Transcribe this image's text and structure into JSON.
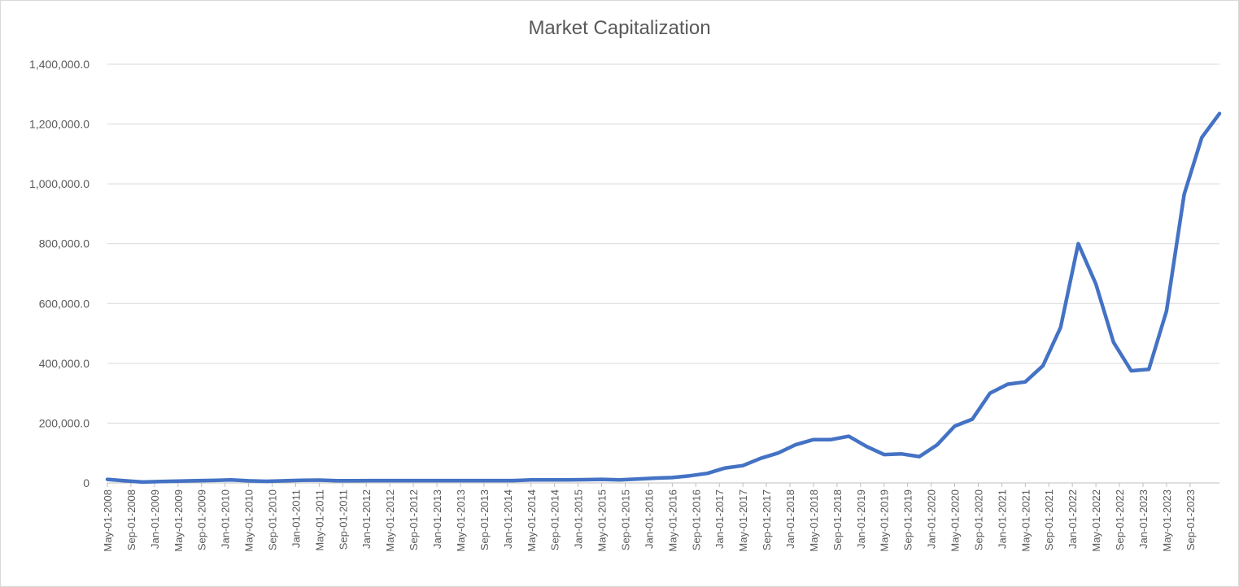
{
  "chart_data": {
    "type": "line",
    "title": "Market Capitalization",
    "xlabel": "",
    "ylabel": "",
    "ylim": [
      0,
      1400000
    ],
    "yticks": [
      "0",
      "200,000.0",
      "400,000.0",
      "600,000.0",
      "800,000.0",
      "1,000,000.0",
      "1,200,000.0",
      "1,400,000.0"
    ],
    "ytick_values": [
      0,
      200000,
      400000,
      600000,
      800000,
      1000000,
      1200000,
      1400000
    ],
    "grid": "horizontal",
    "legend": "none",
    "categories": [
      "May-01-2008",
      "Sep-01-2008",
      "Jan-01-2009",
      "May-01-2009",
      "Sep-01-2009",
      "Jan-01-2010",
      "May-01-2010",
      "Sep-01-2010",
      "Jan-01-2011",
      "May-01-2011",
      "Sep-01-2011",
      "Jan-01-2012",
      "May-01-2012",
      "Sep-01-2012",
      "Jan-01-2013",
      "May-01-2013",
      "Sep-01-2013",
      "Jan-01-2014",
      "May-01-2014",
      "Sep-01-2014",
      "Jan-01-2015",
      "May-01-2015",
      "Sep-01-2015",
      "Jan-01-2016",
      "May-01-2016",
      "Sep-01-2016",
      "Jan-01-2017",
      "May-01-2017",
      "Sep-01-2017",
      "Jan-01-2018",
      "May-01-2018",
      "Sep-01-2018",
      "Jan-01-2019",
      "May-01-2019",
      "Sep-01-2019",
      "Jan-01-2020",
      "May-01-2020",
      "Sep-01-2020",
      "Jan-01-2021",
      "May-01-2021",
      "Sep-01-2021",
      "Jan-01-2022",
      "May-01-2022",
      "Sep-01-2022",
      "Jan-01-2023",
      "May-01-2023",
      "Sep-01-2023"
    ],
    "series": [
      {
        "color": "#4472C4",
        "points": [
          [
            "May-01-2008",
            12000
          ],
          [
            "Aug-01-2008",
            7000
          ],
          [
            "Nov-01-2008",
            3000
          ],
          [
            "Feb-01-2009",
            5000
          ],
          [
            "May-01-2009",
            6000
          ],
          [
            "Aug-01-2009",
            7500
          ],
          [
            "Nov-01-2009",
            8500
          ],
          [
            "Feb-01-2010",
            10000
          ],
          [
            "May-01-2010",
            7000
          ],
          [
            "Aug-01-2010",
            5500
          ],
          [
            "Nov-01-2010",
            7000
          ],
          [
            "Feb-01-2011",
            9000
          ],
          [
            "May-01-2011",
            9500
          ],
          [
            "Aug-01-2011",
            7500
          ],
          [
            "Nov-01-2011",
            7500
          ],
          [
            "Feb-01-2012",
            8000
          ],
          [
            "May-01-2012",
            8000
          ],
          [
            "Aug-01-2012",
            8000
          ],
          [
            "Nov-01-2012",
            8000
          ],
          [
            "Feb-01-2013",
            8000
          ],
          [
            "May-01-2013",
            8000
          ],
          [
            "Aug-01-2013",
            8000
          ],
          [
            "Nov-01-2013",
            8000
          ],
          [
            "Feb-01-2014",
            8000
          ],
          [
            "May-01-2014",
            10000
          ],
          [
            "Aug-01-2014",
            10000
          ],
          [
            "Nov-01-2014",
            10000
          ],
          [
            "Feb-01-2015",
            11000
          ],
          [
            "May-01-2015",
            12000
          ],
          [
            "Aug-01-2015",
            10000
          ],
          [
            "Nov-01-2015",
            13000
          ],
          [
            "Feb-01-2016",
            16000
          ],
          [
            "May-01-2016",
            18000
          ],
          [
            "Aug-01-2016",
            24000
          ],
          [
            "Nov-01-2016",
            32000
          ],
          [
            "Feb-01-2017",
            50000
          ],
          [
            "May-01-2017",
            58000
          ],
          [
            "Aug-01-2017",
            82000
          ],
          [
            "Nov-01-2017",
            100000
          ],
          [
            "Feb-01-2018",
            128000
          ],
          [
            "May-01-2018",
            145000
          ],
          [
            "Aug-01-2018",
            145000
          ],
          [
            "Nov-01-2018",
            156000
          ],
          [
            "Feb-01-2019",
            122000
          ],
          [
            "May-01-2019",
            95000
          ],
          [
            "Aug-01-2019",
            97000
          ],
          [
            "Nov-01-2019",
            88000
          ],
          [
            "Feb-01-2020",
            127000
          ],
          [
            "May-01-2020",
            190000
          ],
          [
            "Aug-01-2020",
            213000
          ],
          [
            "Nov-01-2020",
            300000
          ],
          [
            "Feb-01-2021",
            330000
          ],
          [
            "May-01-2021",
            338000
          ],
          [
            "Aug-01-2021",
            392000
          ],
          [
            "Nov-01-2021",
            520000
          ],
          [
            "Feb-01-2022",
            800000
          ],
          [
            "May-01-2022",
            665000
          ],
          [
            "Aug-01-2022",
            470000
          ],
          [
            "Nov-01-2022",
            375000
          ],
          [
            "Feb-01-2023",
            380000
          ],
          [
            "May-01-2023",
            575000
          ],
          [
            "Aug-01-2023",
            965000
          ],
          [
            "Nov-01-2023",
            1155000
          ],
          [
            "Feb-01-2024",
            1235000
          ]
        ]
      }
    ]
  }
}
